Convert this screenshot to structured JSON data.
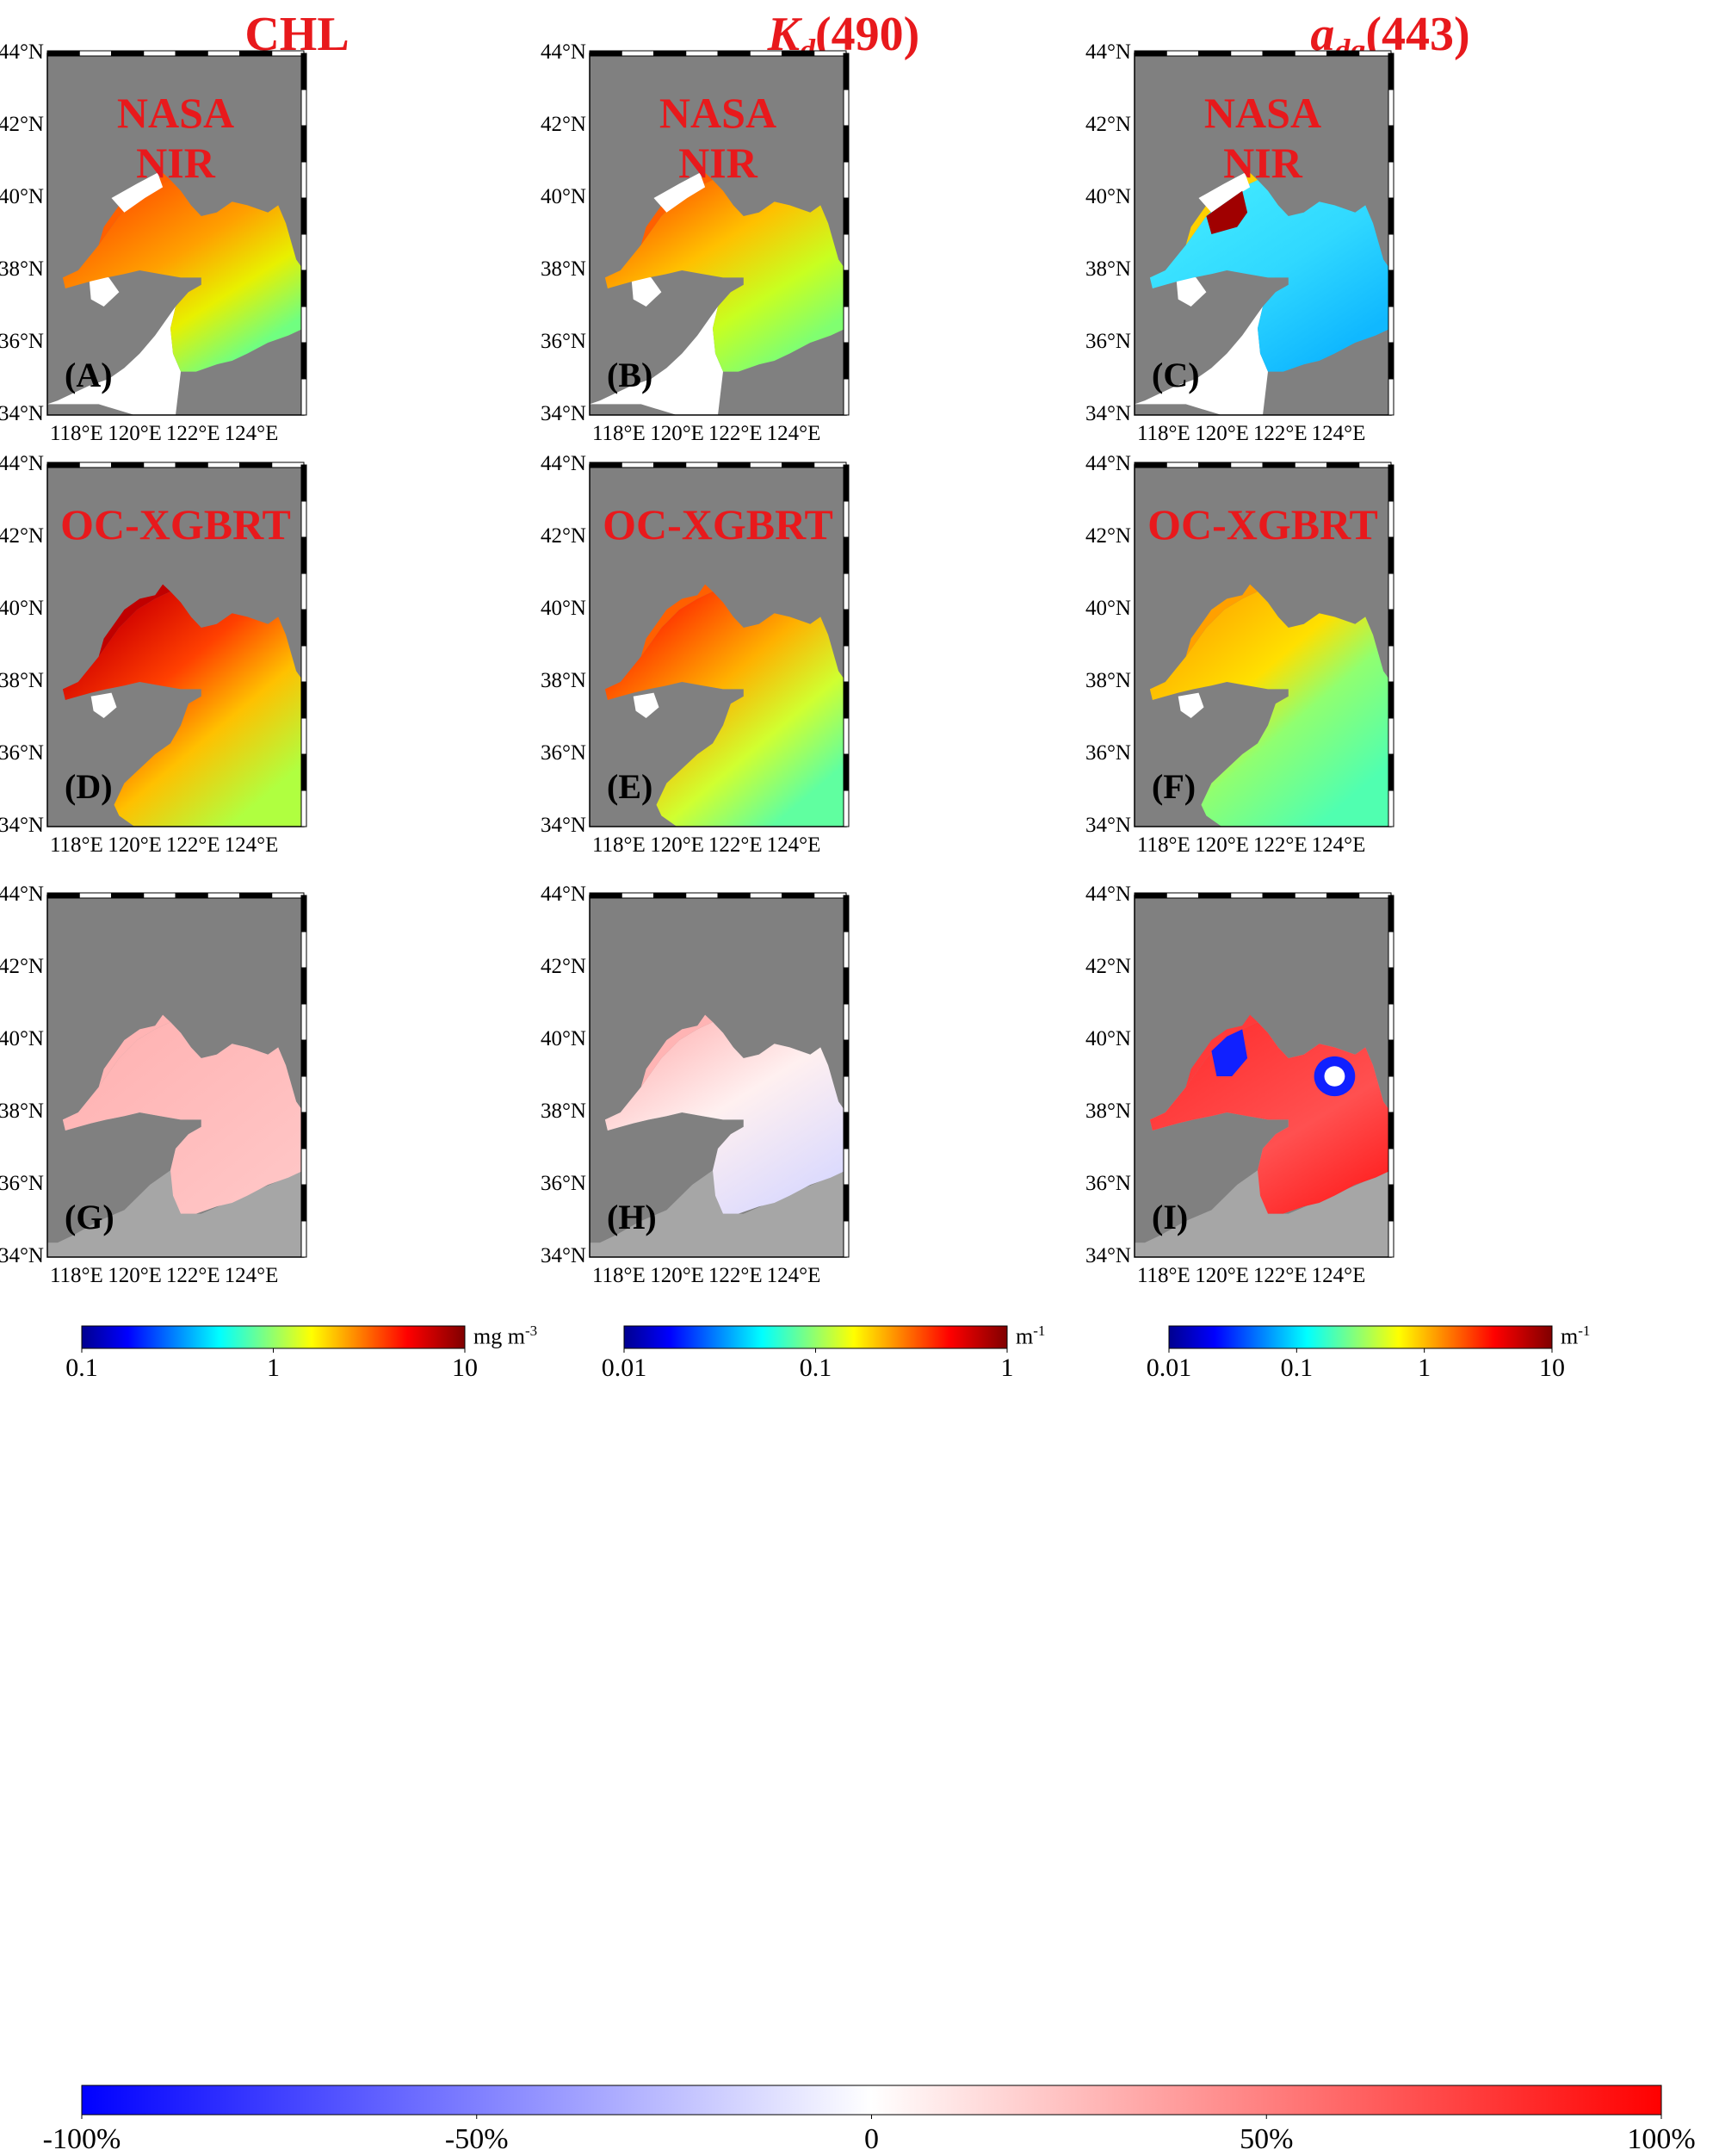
{
  "columns": [
    {
      "title": "CHL"
    },
    {
      "title_main": "K",
      "title_sub": "d",
      "title_paren": "(490)"
    },
    {
      "title_main": "a",
      "title_sub": "dg",
      "title_paren": "(443)"
    }
  ],
  "row_labels": {
    "nasa_line1": "NASA",
    "nasa_line2": "NIR",
    "xgb": "OC-XGBRT"
  },
  "panels": [
    {
      "id": "A",
      "label": "(A)",
      "row": "nasa",
      "variable": "CHL"
    },
    {
      "id": "B",
      "label": "(B)",
      "row": "nasa",
      "variable": "Kd490"
    },
    {
      "id": "C",
      "label": "(C)",
      "row": "nasa",
      "variable": "adg443"
    },
    {
      "id": "D",
      "label": "(D)",
      "row": "xgb",
      "variable": "CHL"
    },
    {
      "id": "E",
      "label": "(E)",
      "row": "xgb",
      "variable": "Kd490"
    },
    {
      "id": "F",
      "label": "(F)",
      "row": "xgb",
      "variable": "adg443"
    },
    {
      "id": "G",
      "label": "(G)",
      "row": "diff",
      "variable": "CHL"
    },
    {
      "id": "H",
      "label": "(H)",
      "row": "diff",
      "variable": "Kd490"
    },
    {
      "id": "I",
      "label": "(I)",
      "row": "diff",
      "variable": "adg443"
    }
  ],
  "axes": {
    "lat_ticks": [
      "34°N",
      "36°N",
      "38°N",
      "40°N",
      "42°N",
      "44°N"
    ],
    "lon_ticks": [
      "118°E",
      "120°E",
      "122°E",
      "124°E"
    ],
    "lat_range": [
      34,
      44
    ],
    "lon_range": [
      117,
      125.8
    ]
  },
  "colorbars": [
    {
      "id": "chl",
      "scale": "log",
      "ticks": [
        "0.1",
        "1",
        "10"
      ],
      "unit_base": "mg m",
      "unit_exp": "-3"
    },
    {
      "id": "kd",
      "scale": "log",
      "ticks": [
        "0.01",
        "0.1",
        "1"
      ],
      "unit_base": "m",
      "unit_exp": "-1"
    },
    {
      "id": "adg",
      "scale": "log",
      "ticks": [
        "0.01",
        "0.1",
        "1",
        "10"
      ],
      "unit_base": "m",
      "unit_exp": "-1"
    },
    {
      "id": "diff",
      "scale": "linear",
      "ticks": [
        "-100%",
        "-50%",
        "0",
        "50%",
        "100%"
      ]
    }
  ],
  "colors": {
    "land": "#808080",
    "diff_land": "#a6a6a6",
    "no_data": "#ffffff",
    "title_red": "#e8191c",
    "jet": [
      "#00008f",
      "#0000ff",
      "#00ffff",
      "#ffff00",
      "#ff0000",
      "#800000"
    ],
    "bwr": [
      "#0000ff",
      "#ffffff",
      "#ff0000"
    ]
  }
}
